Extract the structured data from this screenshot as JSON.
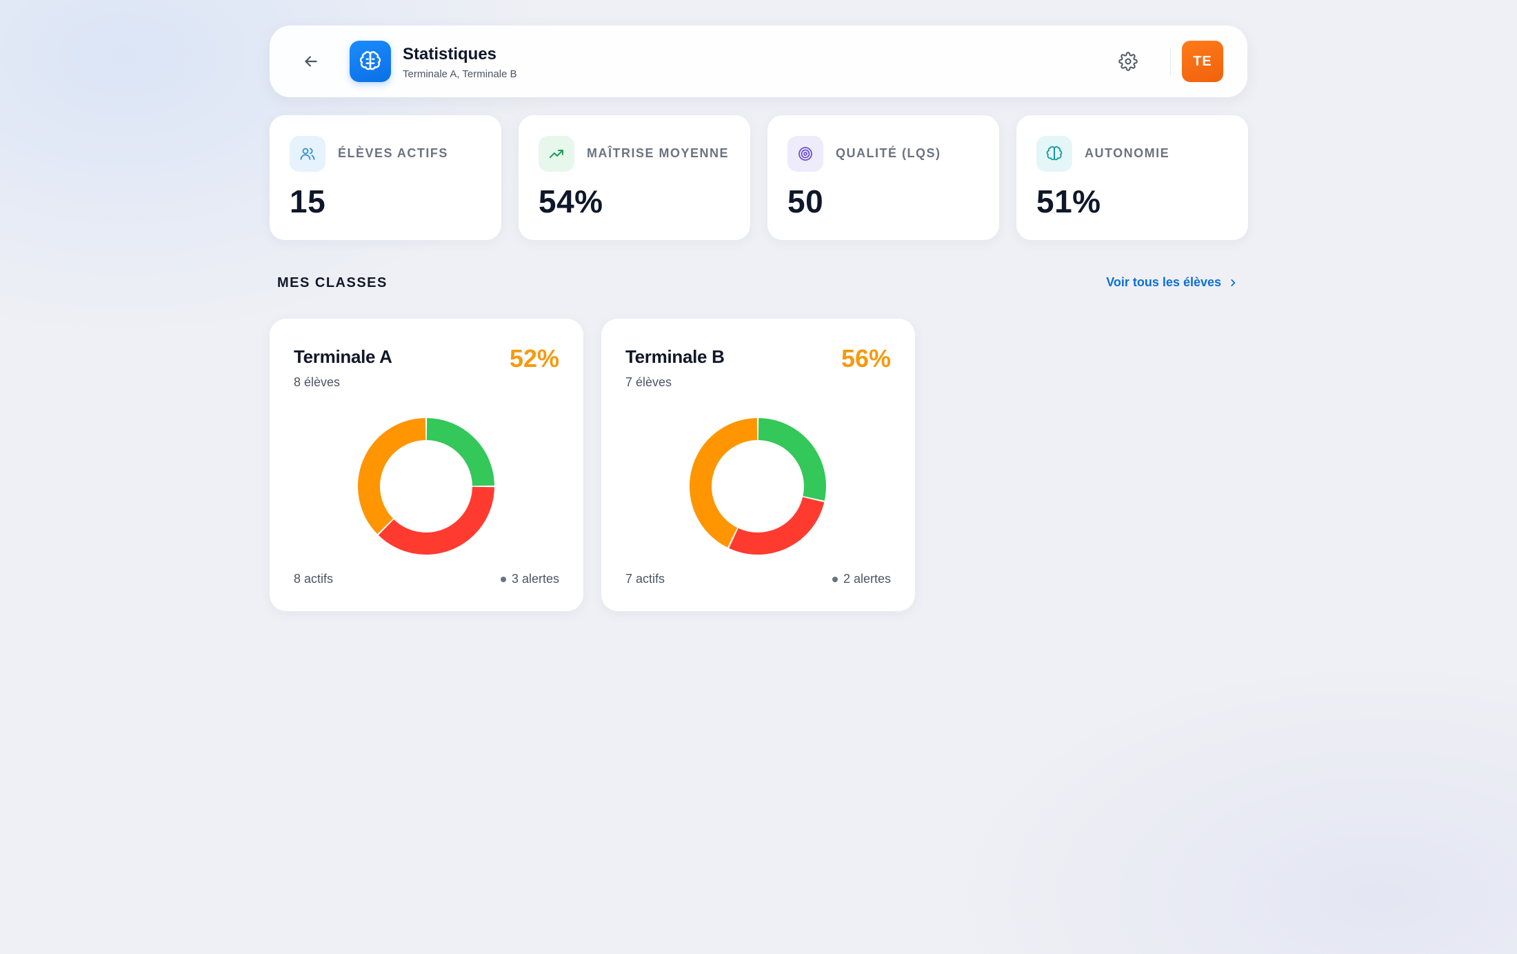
{
  "header": {
    "title": "Statistiques",
    "subtitle": "Terminale A, Terminale B",
    "avatar_initials": "TE",
    "app_icon": "brain-icon",
    "back_icon": "arrow-left-icon",
    "settings_icon": "gear-icon"
  },
  "stats": [
    {
      "label": "ÉLÈVES ACTIFS",
      "value": "15",
      "icon": "users-icon",
      "color": "#2f8fd8"
    },
    {
      "label": "MAÎTRISE MOYENNE",
      "value": "54%",
      "icon": "trending-up-icon",
      "color": "#1f9d55"
    },
    {
      "label": "QUALITÉ (LQS)",
      "value": "50",
      "icon": "target-icon",
      "color": "#6d4fd6"
    },
    {
      "label": "AUTONOMIE",
      "value": "51%",
      "icon": "brain-icon",
      "color": "#129aa6"
    }
  ],
  "section": {
    "title": "MES CLASSES",
    "see_all": "Voir tous les élèves"
  },
  "classes": [
    {
      "name": "Terminale A",
      "count": "8 élèves",
      "percent": "52%",
      "actifs": "8 actifs",
      "alertes": "3 alertes",
      "distribution": [
        {
          "color": "#34c759",
          "fraction": 0.25
        },
        {
          "color": "#ff3b30",
          "fraction": 0.375
        },
        {
          "color": "#ff9500",
          "fraction": 0.375
        }
      ]
    },
    {
      "name": "Terminale B",
      "count": "7 élèves",
      "percent": "56%",
      "actifs": "7 actifs",
      "alertes": "2 alertes",
      "distribution": [
        {
          "color": "#34c759",
          "fraction": 0.2857
        },
        {
          "color": "#ff3b30",
          "fraction": 0.2857
        },
        {
          "color": "#ff9500",
          "fraction": 0.4286
        }
      ]
    }
  ],
  "colors": {
    "accent_blue": "#0a6fe6",
    "avatar_orange": "#f0620c",
    "percent_orange": "#f59a0f",
    "link_blue": "#0a6fd6"
  }
}
